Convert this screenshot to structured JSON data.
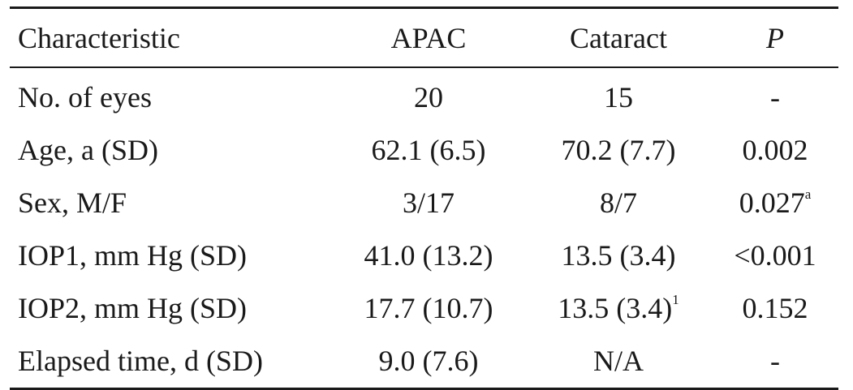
{
  "table": {
    "headers": [
      "Characteristic",
      "APAC",
      "Cataract",
      "P"
    ],
    "rows": [
      {
        "label": "No. of eyes",
        "apac": "20",
        "cataract": "15",
        "cataract_sup": "",
        "p": "-",
        "p_sup": ""
      },
      {
        "label": "Age, a (SD)",
        "apac": "62.1 (6.5)",
        "cataract": "70.2 (7.7)",
        "cataract_sup": "",
        "p": "0.002",
        "p_sup": ""
      },
      {
        "label": "Sex, M/F",
        "apac": "3/17",
        "cataract": "8/7",
        "cataract_sup": "",
        "p": "0.027",
        "p_sup": "a"
      },
      {
        "label": "IOP1, mm Hg (SD)",
        "apac": "41.0 (13.2)",
        "cataract": "13.5 (3.4)",
        "cataract_sup": "",
        "p": "<0.001",
        "p_sup": ""
      },
      {
        "label": "IOP2, mm Hg (SD)",
        "apac": "17.7 (10.7)",
        "cataract": "13.5 (3.4)",
        "cataract_sup": "1",
        "p": "0.152",
        "p_sup": ""
      },
      {
        "label": "Elapsed time, d (SD)",
        "apac": "9.0 (7.6)",
        "cataract": "N/A",
        "cataract_sup": "",
        "p": "-",
        "p_sup": ""
      }
    ]
  }
}
